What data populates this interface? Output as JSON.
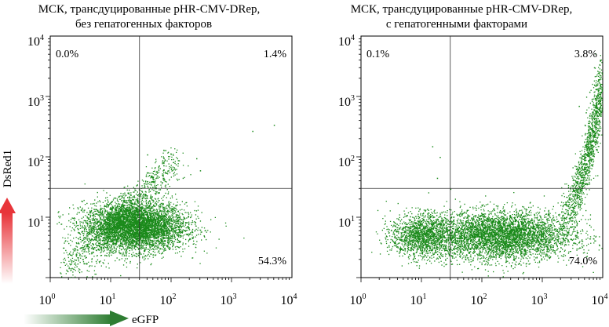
{
  "chart_data": [
    {
      "type": "scatter",
      "title": "МСК, трансдуцированные pHR-CMV-DRep,",
      "subtitle": "без гепатогенных факторов",
      "x_scale": "log",
      "y_scale": "log",
      "xlim": [
        1,
        10000
      ],
      "ylim": [
        1,
        10000
      ],
      "gates": {
        "x": 30,
        "y": 30
      },
      "x_ticks": [
        {
          "base": "10",
          "exp": "0"
        },
        {
          "base": "10",
          "exp": "1"
        },
        {
          "base": "10",
          "exp": "2"
        },
        {
          "base": "10",
          "exp": "3"
        },
        {
          "base": "10",
          "exp": "4"
        }
      ],
      "y_ticks": [
        {
          "base": "10",
          "exp": "1"
        },
        {
          "base": "10",
          "exp": "2"
        },
        {
          "base": "10",
          "exp": "3"
        },
        {
          "base": "10",
          "exp": "4"
        }
      ],
      "quadrants": {
        "upper_left": "0.0%",
        "upper_right": "1.4%",
        "lower_right": "54.3%"
      },
      "point_color": "#1a8a1a",
      "population": {
        "main_cloud": {
          "x_center": 25,
          "y_center": 7,
          "x_spread_log": 0.42,
          "y_spread_log": 0.2,
          "count": 5200
        },
        "diagonal_tail": {
          "x_from": 2,
          "x_to": 120,
          "y_from": 2.5,
          "y_to": 150,
          "count": 900
        },
        "sparse_points": [
          [
            5000,
            340
          ],
          [
            2200,
            270
          ],
          [
            260,
            95
          ],
          [
            40,
            110
          ],
          [
            80,
            130
          ],
          [
            300,
            60
          ]
        ]
      }
    },
    {
      "type": "scatter",
      "title": "МСК, трансдуцированные pHR-CMV-DRep,",
      "subtitle": "с гепатогенными факторами",
      "x_scale": "log",
      "y_scale": "log",
      "xlim": [
        1,
        10000
      ],
      "ylim": [
        1,
        10000
      ],
      "gates": {
        "x": 30,
        "y": 30
      },
      "x_ticks": [
        {
          "base": "10",
          "exp": "0"
        },
        {
          "base": "10",
          "exp": "1"
        },
        {
          "base": "10",
          "exp": "2"
        },
        {
          "base": "10",
          "exp": "3"
        },
        {
          "base": "10",
          "exp": "4"
        }
      ],
      "y_ticks": [
        {
          "base": "10",
          "exp": "1"
        },
        {
          "base": "10",
          "exp": "2"
        },
        {
          "base": "10",
          "exp": "3"
        },
        {
          "base": "10",
          "exp": "4"
        }
      ],
      "quadrants": {
        "upper_left": "0.1%",
        "upper_right": "3.8%",
        "lower_right": "74.0%"
      },
      "point_color": "#1a8a1a",
      "population": {
        "main_cloud": {
          "x_center": 200,
          "y_center": 5,
          "x_spread_log": 0.6,
          "y_spread_log": 0.2,
          "count": 4500
        },
        "left_cluster": {
          "x_center": 10,
          "y_center": 5,
          "x_spread_log": 0.25,
          "y_spread_log": 0.18,
          "count": 1400
        },
        "rising_tail": {
          "x_from": 2000,
          "x_to": 10000,
          "y_from": 10,
          "y_to": 2000,
          "count": 1300
        },
        "sparse_points": [
          [
            15,
            150
          ],
          [
            20,
            100
          ],
          [
            18,
            45
          ],
          [
            4000,
            700
          ],
          [
            6000,
            1200
          ]
        ]
      }
    }
  ],
  "axes": {
    "y_label": "DsRed1",
    "x_label": "eGFP"
  }
}
